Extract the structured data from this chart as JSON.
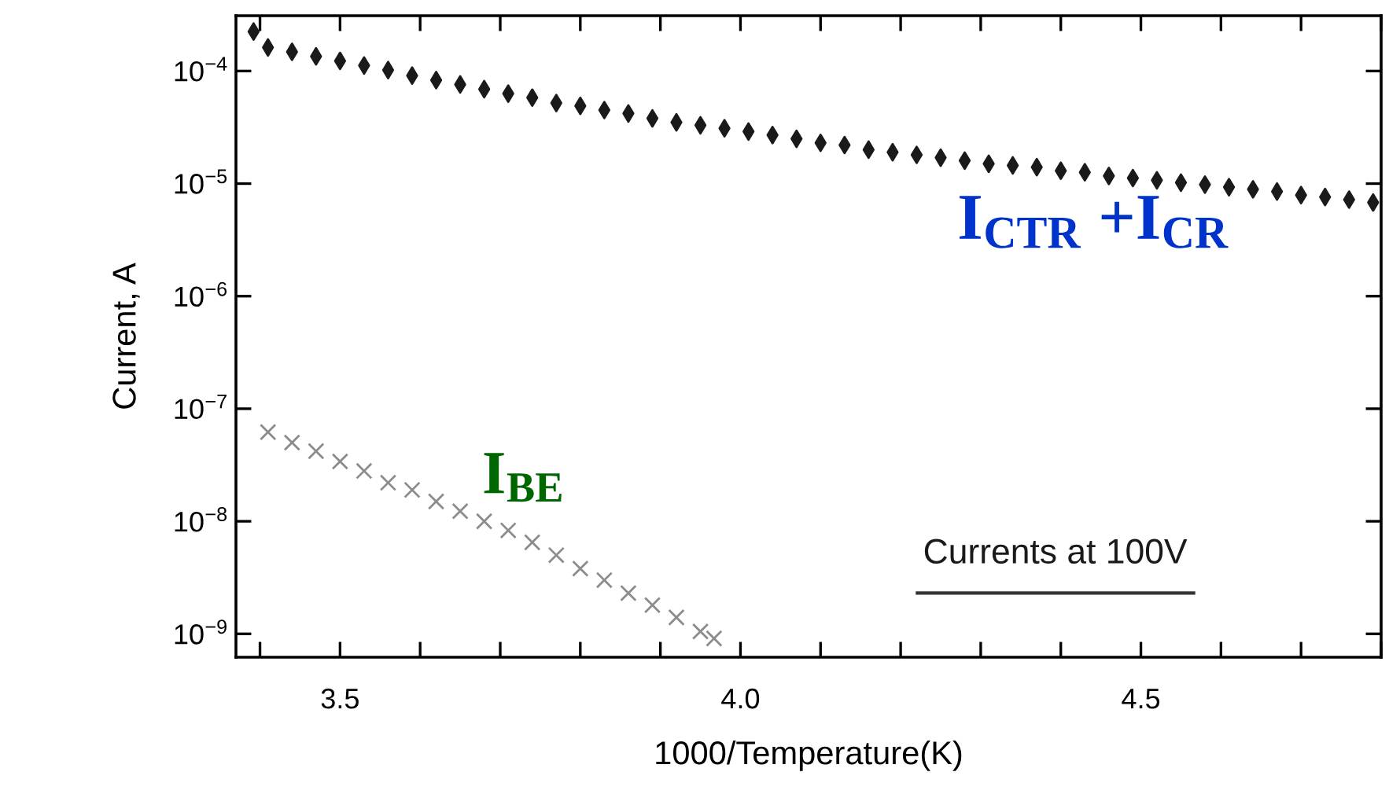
{
  "chart_data": {
    "type": "scatter",
    "xlabel": "1000/Temperature(K)",
    "ylabel": "Current, A",
    "log": "y",
    "grid": false,
    "legend": false,
    "xlim": [
      3.37,
      4.8
    ],
    "ylim": [
      6.2e-10,
      0.00031
    ],
    "xticks": [
      {
        "value": 3.4,
        "label": null
      },
      3.5,
      {
        "value": 3.6,
        "label": null
      },
      {
        "value": 3.7,
        "label": null
      },
      {
        "value": 3.8,
        "label": null
      },
      {
        "value": 3.9,
        "label": null
      },
      {
        "value": 4.0,
        "label": "4.0"
      },
      {
        "value": 4.1,
        "label": null
      },
      {
        "value": 4.2,
        "label": null
      },
      {
        "value": 4.3,
        "label": null
      },
      {
        "value": 4.4,
        "label": null
      },
      4.5,
      {
        "value": 4.6,
        "label": null
      },
      {
        "value": 4.7,
        "label": null
      },
      {
        "value": 4.8,
        "label": null
      }
    ],
    "yticks": [
      {
        "value": 1e-09,
        "label": "10$^{−9}$"
      },
      {
        "value": 1e-08,
        "label": "10$^{−8}$"
      },
      {
        "value": 1e-07,
        "label": "10$^{−7}$"
      },
      {
        "value": 1e-06,
        "label": "10$^{−6}$"
      },
      {
        "value": 1e-05,
        "label": "10$^{−5}$"
      },
      {
        "value": 0.0001,
        "label": "10$^{−4}$"
      }
    ],
    "annotations": [
      "I$_{CTR}$ +I$_{CR}$",
      "I$_{BE}$",
      "Currents at 100V"
    ],
    "series": [
      {
        "color": "#1a1a1a",
        "marker": "diamond",
        "x": [
          3.392,
          3.41,
          3.44,
          3.47,
          3.5,
          3.53,
          3.56,
          3.59,
          3.62,
          3.65,
          3.68,
          3.71,
          3.74,
          3.77,
          3.8,
          3.83,
          3.86,
          3.89,
          3.92,
          3.95,
          3.98,
          4.01,
          4.04,
          4.07,
          4.1,
          4.13,
          4.16,
          4.19,
          4.22,
          4.25,
          4.28,
          4.31,
          4.34,
          4.37,
          4.4,
          4.43,
          4.46,
          4.49,
          4.52,
          4.55,
          4.58,
          4.61,
          4.64,
          4.67,
          4.7,
          4.73,
          4.76,
          4.79
        ],
        "values": [
          0.000224,
          0.000162,
          0.000148,
          0.000135,
          0.000123,
          0.000112,
          0.000102,
          9.1e-05,
          8.3e-05,
          7.6e-05,
          6.9e-05,
          6.3e-05,
          5.8e-05,
          5.2e-05,
          4.9e-05,
          4.5e-05,
          4.2e-05,
          3.8e-05,
          3.5e-05,
          3.3e-05,
          3.1e-05,
          2.9e-05,
          2.7e-05,
          2.5e-05,
          2.3e-05,
          2.2e-05,
          2e-05,
          1.9e-05,
          1.8e-05,
          1.7e-05,
          1.6e-05,
          1.5e-05,
          1.45e-05,
          1.4e-05,
          1.3e-05,
          1.26e-05,
          1.17e-05,
          1.12e-05,
          1.07e-05,
          1.02e-05,
          9.8e-06,
          9.3e-06,
          8.9e-06,
          8.5e-06,
          7.9e-06,
          7.6e-06,
          7.2e-06,
          6.8e-06
        ]
      },
      {
        "color": "#8c8c8c",
        "marker": "cross",
        "x": [
          3.41,
          3.44,
          3.47,
          3.5,
          3.53,
          3.56,
          3.59,
          3.62,
          3.65,
          3.68,
          3.71,
          3.74,
          3.77,
          3.8,
          3.83,
          3.86,
          3.89,
          3.92,
          3.95,
          3.967
        ],
        "values": [
          6.2e-08,
          5e-08,
          4.2e-08,
          3.4e-08,
          2.8e-08,
          2.2e-08,
          1.9e-08,
          1.5e-08,
          1.23e-08,
          1e-08,
          8.3e-09,
          6.5e-09,
          5e-09,
          3.8e-09,
          3e-09,
          2.3e-09,
          1.8e-09,
          1.4e-09,
          1.05e-09,
          9.1e-10
        ]
      }
    ]
  }
}
